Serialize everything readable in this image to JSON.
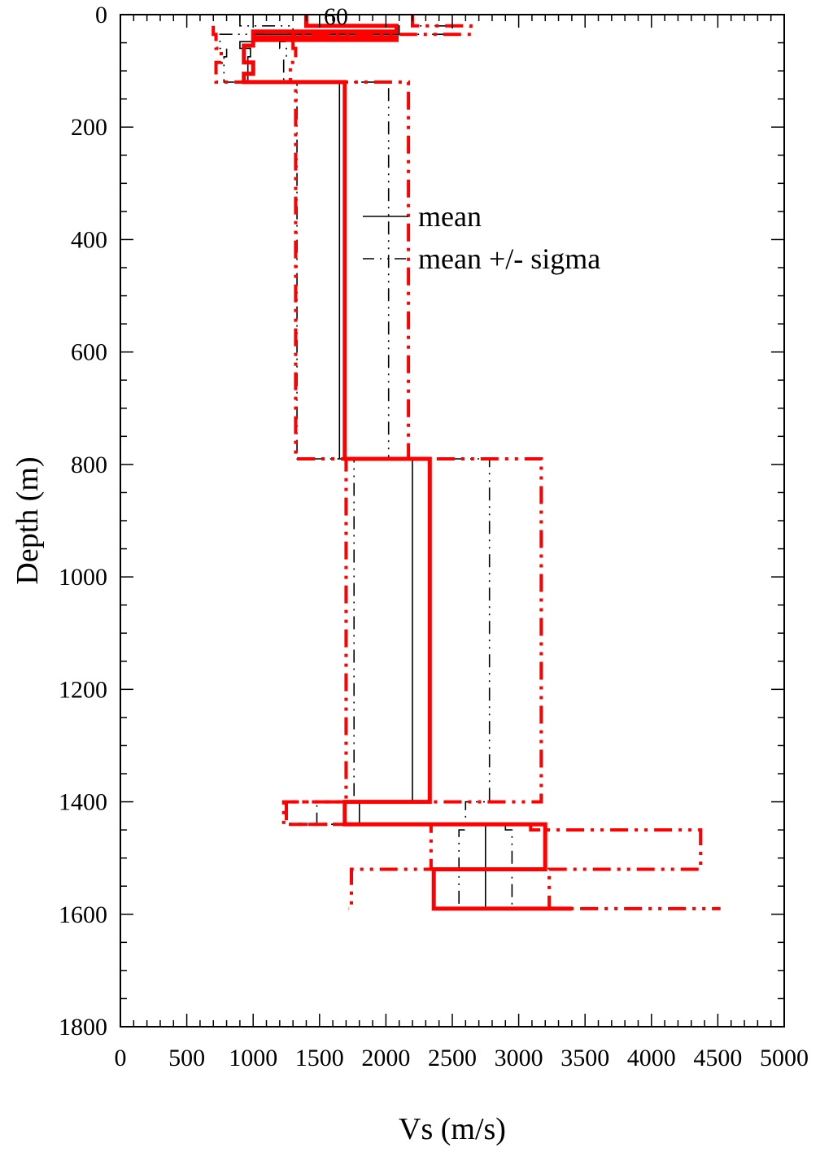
{
  "chart_data": {
    "type": "line",
    "xlabel": "Vs (m/s)",
    "ylabel": "Depth (m)",
    "xlim": [
      0,
      5000
    ],
    "ylim": [
      0,
      1800
    ],
    "y_inverted": true,
    "grid": false,
    "legend_position": "center",
    "x_ticks": [
      "0",
      "500",
      "1000",
      "1500",
      "2000",
      "2500",
      "3000",
      "3500",
      "4000",
      "4500",
      "5000"
    ],
    "y_ticks": [
      "0",
      "200",
      "400",
      "600",
      "800",
      "1000",
      "1200",
      "1400",
      "1600",
      "1800"
    ],
    "annotation": "60",
    "legend": [
      {
        "label": "mean",
        "style": "solid",
        "color": "#000000"
      },
      {
        "label": "mean +/- sigma",
        "style": "dashdotdot",
        "color": "#000000"
      }
    ],
    "series": [
      {
        "name": "mean",
        "color": "#000000",
        "style": "solid",
        "profile": [
          [
            1500,
            0
          ],
          [
            1500,
            20
          ],
          [
            2100,
            20
          ],
          [
            2100,
            35
          ],
          [
            1000,
            35
          ],
          [
            1000,
            48
          ],
          [
            900,
            48
          ],
          [
            900,
            60
          ],
          [
            980,
            60
          ],
          [
            980,
            75
          ],
          [
            960,
            75
          ],
          [
            960,
            120
          ],
          [
            1650,
            120
          ],
          [
            1650,
            790
          ],
          [
            2200,
            790
          ],
          [
            2200,
            1400
          ],
          [
            1800,
            1400
          ],
          [
            1800,
            1440
          ],
          [
            2750,
            1440
          ],
          [
            2750,
            1590
          ]
        ]
      },
      {
        "name": "mean - sigma",
        "color": "#000000",
        "style": "dashdotdot",
        "profile": [
          [
            900,
            0
          ],
          [
            900,
            20
          ],
          [
            1300,
            20
          ],
          [
            1300,
            35
          ],
          [
            750,
            35
          ],
          [
            750,
            48
          ],
          [
            750,
            60
          ],
          [
            800,
            60
          ],
          [
            800,
            75
          ],
          [
            780,
            75
          ],
          [
            780,
            120
          ],
          [
            1330,
            120
          ],
          [
            1330,
            790
          ],
          [
            1760,
            790
          ],
          [
            1760,
            1400
          ],
          [
            1480,
            1400
          ],
          [
            1480,
            1440
          ],
          [
            2600,
            1440
          ],
          [
            2600,
            1450
          ],
          [
            2550,
            1450
          ],
          [
            2550,
            1590
          ]
        ]
      },
      {
        "name": "mean + sigma",
        "color": "#000000",
        "style": "dashdotdot",
        "profile": [
          [
            2200,
            0
          ],
          [
            2200,
            20
          ],
          [
            2500,
            20
          ],
          [
            2500,
            35
          ],
          [
            1300,
            35
          ],
          [
            1300,
            48
          ],
          [
            1200,
            48
          ],
          [
            1200,
            60
          ],
          [
            1250,
            60
          ],
          [
            1250,
            75
          ],
          [
            1230,
            75
          ],
          [
            1230,
            120
          ],
          [
            2020,
            120
          ],
          [
            2020,
            790
          ],
          [
            2780,
            790
          ],
          [
            2780,
            1400
          ],
          [
            2600,
            1400
          ],
          [
            2600,
            1440
          ],
          [
            2900,
            1440
          ],
          [
            2900,
            1450
          ],
          [
            2950,
            1450
          ],
          [
            2950,
            1590
          ]
        ]
      },
      {
        "name": "red mean",
        "color": "#ff0000",
        "style": "solid",
        "profile": [
          [
            1400,
            0
          ],
          [
            1400,
            20
          ],
          [
            2080,
            20
          ],
          [
            2080,
            30
          ],
          [
            1000,
            30
          ],
          [
            1000,
            40
          ],
          [
            2080,
            40
          ],
          [
            2080,
            45
          ],
          [
            1000,
            45
          ],
          [
            1000,
            55
          ],
          [
            930,
            55
          ],
          [
            930,
            85
          ],
          [
            1000,
            85
          ],
          [
            1000,
            105
          ],
          [
            930,
            105
          ],
          [
            930,
            120
          ],
          [
            1690,
            120
          ],
          [
            1690,
            790
          ],
          [
            2330,
            790
          ],
          [
            2330,
            1400
          ],
          [
            1690,
            1400
          ],
          [
            1690,
            1440
          ],
          [
            3200,
            1440
          ],
          [
            3200,
            1520
          ],
          [
            2360,
            1520
          ],
          [
            2360,
            1590
          ],
          [
            3400,
            1590
          ]
        ]
      },
      {
        "name": "red mean - sigma",
        "color": "#ff0000",
        "style": "dashdotdot",
        "profile": [
          [
            700,
            20
          ],
          [
            700,
            35
          ],
          [
            720,
            35
          ],
          [
            720,
            60
          ],
          [
            760,
            60
          ],
          [
            760,
            85
          ],
          [
            720,
            85
          ],
          [
            720,
            120
          ],
          [
            1320,
            120
          ],
          [
            1320,
            790
          ],
          [
            1700,
            790
          ],
          [
            1700,
            1400
          ],
          [
            1230,
            1400
          ],
          [
            1230,
            1440
          ],
          [
            2340,
            1440
          ],
          [
            2340,
            1520
          ],
          [
            1740,
            1520
          ],
          [
            1740,
            1590
          ],
          [
            1720,
            1590
          ]
        ]
      },
      {
        "name": "red mean + sigma",
        "color": "#ff0000",
        "style": "dashdotdot",
        "profile": [
          [
            2200,
            0
          ],
          [
            2200,
            20
          ],
          [
            2640,
            20
          ],
          [
            2640,
            35
          ],
          [
            1300,
            35
          ],
          [
            1300,
            60
          ],
          [
            1320,
            60
          ],
          [
            1320,
            85
          ],
          [
            1280,
            85
          ],
          [
            1280,
            120
          ],
          [
            2170,
            120
          ],
          [
            2170,
            790
          ],
          [
            3170,
            790
          ],
          [
            3170,
            1400
          ],
          [
            1250,
            1400
          ],
          [
            1250,
            1440
          ],
          [
            3090,
            1440
          ],
          [
            3090,
            1450
          ],
          [
            4370,
            1450
          ],
          [
            4370,
            1520
          ],
          [
            3230,
            1520
          ],
          [
            3230,
            1590
          ],
          [
            4520,
            1590
          ]
        ]
      }
    ]
  }
}
